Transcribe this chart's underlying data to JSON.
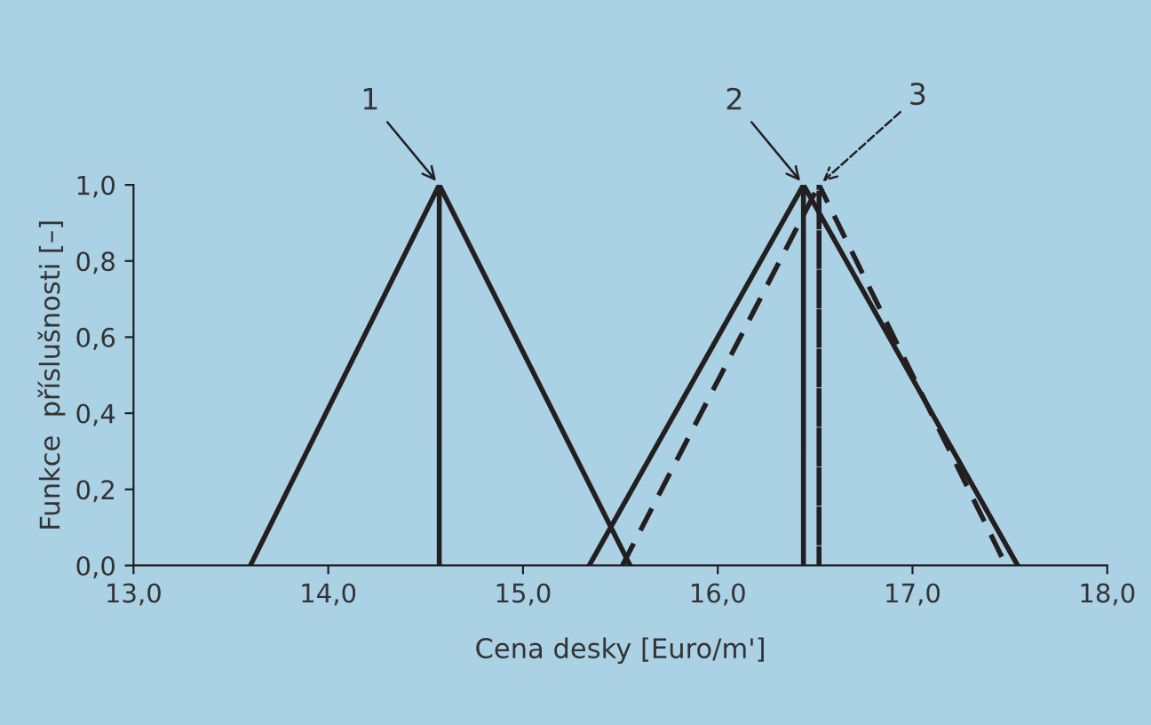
{
  "chart_data": {
    "type": "line",
    "xlabel": "Cena desky [Euro/m']",
    "ylabel": "Funkce  příslušnosti [–]",
    "series": [
      {
        "x": [
          13.6,
          14.57,
          14.57,
          14.57,
          15.55
        ],
        "values": [
          0,
          1.0,
          0,
          1.0,
          0
        ],
        "color": "#231f20",
        "line_style": "solid"
      },
      {
        "x": [
          15.34,
          16.44,
          16.44,
          16.44,
          17.54
        ],
        "values": [
          0,
          1.0,
          0,
          1.0,
          0
        ],
        "color": "#231f20",
        "line_style": "solid"
      },
      {
        "x": [
          15.51,
          16.52,
          16.52,
          16.52,
          17.48
        ],
        "values": [
          0,
          1.0,
          0,
          1.0,
          0
        ],
        "color": "#231f20",
        "line_style": "dashed"
      }
    ],
    "annotations": [
      {
        "text": "1",
        "x": 14.57,
        "y": 1.0
      },
      {
        "text": "2",
        "x": 16.44,
        "y": 1.0
      },
      {
        "text": "3",
        "x": 16.52,
        "y": 1.0
      }
    ],
    "xlim": [
      13.0,
      18.0
    ],
    "xticks": [
      {
        "value": 13.0,
        "label": "13,0"
      },
      {
        "value": 14.0,
        "label": "14,0"
      },
      {
        "value": 15.0,
        "label": "15,0"
      },
      {
        "value": 16.0,
        "label": "16,0"
      },
      {
        "value": 17.0,
        "label": "17,0"
      },
      {
        "value": 18.0,
        "label": "18,0"
      }
    ],
    "ylim": [
      0,
      1.0
    ],
    "yticks": [
      {
        "value": 0,
        "label": "0,0"
      },
      {
        "value": 0.2,
        "label": "0,2"
      },
      {
        "value": 0.4,
        "label": "0,4"
      },
      {
        "value": 0.6,
        "label": "0,6"
      },
      {
        "value": 0.8,
        "label": "0,8"
      },
      {
        "value": 1.0,
        "label": "1,0"
      }
    ],
    "grid": false,
    "legend": false
  }
}
